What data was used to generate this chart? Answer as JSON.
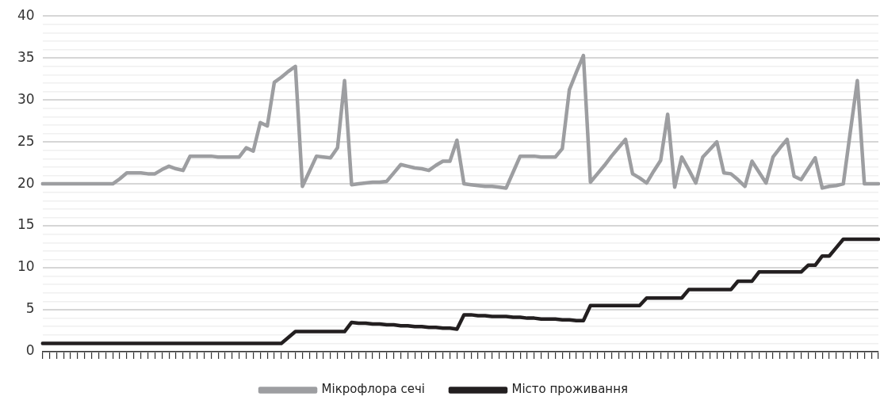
{
  "chart_data": {
    "type": "line",
    "categories": [
      null,
      null,
      null,
      null,
      null,
      null,
      null,
      null,
      null,
      null,
      null,
      null,
      null,
      null,
      null,
      null,
      null,
      null,
      null,
      null,
      null,
      null,
      null,
      null,
      null,
      null,
      null,
      null,
      null,
      null,
      null,
      null,
      null,
      null,
      null,
      null,
      null,
      null,
      null,
      null,
      null,
      null,
      null,
      null,
      null,
      null,
      null,
      null,
      null,
      null,
      null,
      null,
      null,
      null,
      null,
      null,
      null,
      null,
      null,
      null,
      null,
      null,
      null,
      null,
      null,
      null,
      null,
      null,
      null,
      null,
      null,
      null,
      null,
      null,
      null,
      null,
      null,
      null,
      null,
      null,
      null,
      null,
      null,
      null,
      null,
      null,
      null,
      null,
      null,
      null,
      null,
      null,
      null,
      null,
      null,
      null,
      null,
      null,
      null,
      null,
      null,
      null,
      null,
      null,
      null,
      null,
      null,
      null,
      null,
      null,
      null,
      null,
      null,
      null,
      null,
      null,
      null,
      null,
      null,
      null
    ],
    "series": [
      {
        "name": "Мікрофлора сечі",
        "color": "#9d9ea1",
        "values": [
          20.0,
          20.0,
          20.0,
          20.0,
          20.0,
          20.0,
          20.0,
          20.0,
          20.0,
          20.0,
          20.0,
          20.6,
          21.3,
          21.3,
          21.3,
          21.2,
          21.2,
          21.7,
          22.1,
          21.8,
          21.6,
          23.3,
          23.3,
          23.3,
          23.3,
          23.2,
          23.2,
          23.2,
          23.2,
          24.3,
          23.9,
          27.3,
          26.9,
          32.1,
          32.7,
          33.4,
          34.0,
          19.7,
          21.5,
          23.3,
          23.2,
          23.1,
          24.3,
          32.3,
          19.9,
          20.0,
          20.1,
          20.2,
          20.2,
          20.3,
          21.3,
          22.3,
          22.1,
          21.9,
          21.8,
          21.6,
          22.2,
          22.7,
          22.7,
          25.2,
          20.0,
          19.9,
          19.8,
          19.7,
          19.7,
          19.6,
          19.5,
          21.4,
          23.3,
          23.3,
          23.3,
          23.2,
          23.2,
          23.2,
          24.2,
          31.2,
          33.3,
          35.3,
          20.2,
          21.2,
          22.2,
          23.3,
          24.3,
          25.3,
          21.2,
          20.7,
          20.1,
          21.5,
          22.8,
          28.3,
          19.6,
          23.2,
          21.7,
          20.1,
          23.2,
          24.1,
          25.0,
          21.3,
          21.2,
          20.5,
          19.7,
          22.7,
          21.4,
          20.1,
          23.2,
          24.3,
          25.3,
          20.9,
          20.5,
          21.8,
          23.1,
          19.5,
          19.7,
          19.8,
          20.0,
          26.2,
          32.3,
          20.0,
          20.0,
          20.0
        ]
      },
      {
        "name": "Місто проживання",
        "color": "#231f20",
        "values": [
          1,
          1,
          1,
          1,
          1,
          1,
          1,
          1,
          1,
          1,
          1,
          1,
          1,
          1,
          1,
          1,
          1,
          1,
          1,
          1,
          1,
          1,
          1,
          1,
          1,
          1,
          1,
          1,
          1,
          1,
          1,
          1,
          1,
          1,
          1,
          1.7,
          2.4,
          2.4,
          2.4,
          2.4,
          2.4,
          2.4,
          2.4,
          2.4,
          3.5,
          3.4,
          3.4,
          3.3,
          3.3,
          3.2,
          3.2,
          3.1,
          3.1,
          3.0,
          3.0,
          2.9,
          2.9,
          2.8,
          2.8,
          2.7,
          4.4,
          4.4,
          4.3,
          4.3,
          4.2,
          4.2,
          4.2,
          4.1,
          4.1,
          4.0,
          4.0,
          3.9,
          3.9,
          3.9,
          3.8,
          3.8,
          3.7,
          3.7,
          5.5,
          5.5,
          5.5,
          5.5,
          5.5,
          5.5,
          5.5,
          5.5,
          6.4,
          6.4,
          6.4,
          6.4,
          6.4,
          6.4,
          7.4,
          7.4,
          7.4,
          7.4,
          7.4,
          7.4,
          7.4,
          8.4,
          8.4,
          8.4,
          9.5,
          9.5,
          9.5,
          9.5,
          9.5,
          9.5,
          9.5,
          10.3,
          10.3,
          11.4,
          11.4,
          12.4,
          13.4,
          13.4,
          13.4,
          13.4,
          13.4,
          13.4
        ]
      }
    ],
    "ylim": [
      0,
      40
    ],
    "yticks": [
      0,
      {
        "value": 1,
        "label": null
      },
      {
        "value": 2,
        "label": null
      },
      {
        "value": 3,
        "label": null
      },
      {
        "value": 4,
        "label": null
      },
      5,
      {
        "value": 6,
        "label": null
      },
      {
        "value": 7,
        "label": null
      },
      {
        "value": 8,
        "label": null
      },
      {
        "value": 9,
        "label": null
      },
      10,
      {
        "value": 11,
        "label": null
      },
      {
        "value": 12,
        "label": null
      },
      {
        "value": 13,
        "label": null
      },
      {
        "value": 14,
        "label": null
      },
      15,
      {
        "value": 16,
        "label": null
      },
      {
        "value": 17,
        "label": null
      },
      {
        "value": 18,
        "label": null
      },
      {
        "value": 19,
        "label": null
      },
      20,
      {
        "value": 21,
        "label": null
      },
      {
        "value": 22,
        "label": null
      },
      {
        "value": 23,
        "label": null
      },
      {
        "value": 24,
        "label": null
      },
      25,
      {
        "value": 26,
        "label": null
      },
      {
        "value": 27,
        "label": null
      },
      {
        "value": 28,
        "label": null
      },
      {
        "value": 29,
        "label": null
      },
      30,
      {
        "value": 31,
        "label": null
      },
      {
        "value": 32,
        "label": null
      },
      {
        "value": 33,
        "label": null
      },
      {
        "value": 34,
        "label": null
      },
      35,
      {
        "value": 36,
        "label": null
      },
      {
        "value": 37,
        "label": null
      },
      {
        "value": 38,
        "label": null
      },
      {
        "value": 39,
        "label": null
      },
      40
    ],
    "grid": "y",
    "legend": "bottom",
    "tick_labels": "y",
    "marker": "none",
    "line_style": "solid"
  }
}
